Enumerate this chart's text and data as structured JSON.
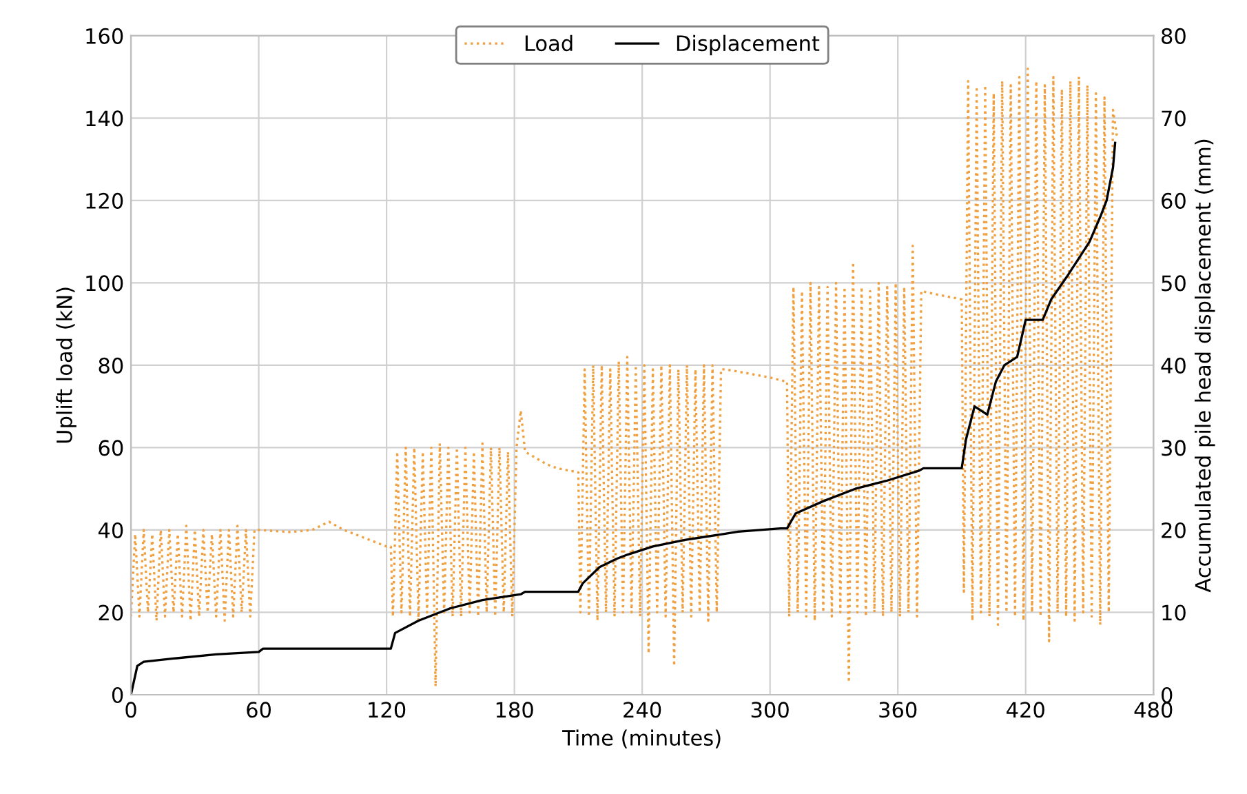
{
  "chart_data": {
    "type": "line",
    "xlabel": "Time (minutes)",
    "ylabel": "Uplift load (kN)",
    "y2label": "Accumulated pile head displacement (mm)",
    "xlim": [
      0,
      480
    ],
    "xticks": [
      0,
      60,
      120,
      180,
      240,
      300,
      360,
      420,
      480
    ],
    "ylim": [
      0,
      160
    ],
    "yticks": [
      0,
      20,
      40,
      60,
      80,
      100,
      120,
      140,
      160
    ],
    "y2lim": [
      0,
      80
    ],
    "y2ticks": [
      0,
      10,
      20,
      30,
      40,
      50,
      60,
      70,
      80
    ],
    "grid": true,
    "legend": "top",
    "marker": "none",
    "series": [
      {
        "name": "Load",
        "color": "#f0a040",
        "line_style": "dotted",
        "axis": "y",
        "x": [
          0,
          2,
          4,
          6,
          8,
          10,
          12,
          14,
          16,
          18,
          20,
          22,
          24,
          26,
          28,
          30,
          32,
          34,
          36,
          38,
          40,
          42,
          44,
          46,
          48,
          50,
          52,
          54,
          56,
          58,
          60,
          75,
          85,
          93,
          100,
          110,
          120,
          122,
          123,
          125,
          127,
          129,
          131,
          133,
          135,
          137,
          139,
          141,
          143,
          145,
          147,
          149,
          151,
          153,
          155,
          157,
          159,
          161,
          163,
          165,
          167,
          169,
          171,
          173,
          175,
          177,
          179,
          181,
          183,
          185,
          195,
          200,
          210,
          211,
          213,
          215,
          217,
          219,
          221,
          223,
          225,
          227,
          229,
          231,
          233,
          235,
          237,
          239,
          241,
          243,
          245,
          247,
          249,
          251,
          253,
          255,
          257,
          259,
          261,
          263,
          265,
          267,
          269,
          271,
          273,
          275,
          277,
          279,
          290,
          300,
          308,
          309,
          311,
          313,
          315,
          317,
          319,
          321,
          323,
          325,
          327,
          329,
          331,
          333,
          335,
          337,
          339,
          341,
          343,
          345,
          347,
          349,
          351,
          353,
          355,
          357,
          359,
          361,
          363,
          365,
          367,
          369,
          371,
          380,
          390,
          391,
          393,
          395,
          397,
          399,
          401,
          403,
          405,
          407,
          409,
          411,
          413,
          415,
          417,
          419,
          421,
          423,
          425,
          427,
          429,
          431,
          433,
          435,
          437,
          439,
          441,
          443,
          445,
          447,
          449,
          451,
          453,
          455,
          457,
          459,
          461,
          463
        ],
        "values": [
          19,
          39,
          19,
          40,
          20,
          39,
          18,
          40,
          19,
          40,
          20,
          39,
          19,
          41,
          18,
          40,
          19,
          40,
          20,
          39,
          19,
          40,
          18,
          40,
          19,
          41,
          20,
          40,
          19,
          40,
          40,
          39.5,
          40,
          42,
          40,
          38,
          36,
          36,
          19,
          59,
          20,
          60,
          19,
          60,
          18,
          59,
          20,
          60,
          2,
          61,
          20,
          60,
          19,
          60,
          19,
          60,
          20,
          59,
          19,
          61,
          20,
          60,
          19,
          60,
          20,
          59,
          19,
          60,
          69,
          59,
          56,
          55,
          54,
          20,
          79,
          19,
          80,
          18,
          80,
          20,
          79,
          19,
          81,
          20,
          82,
          20,
          80,
          19,
          80,
          10,
          79,
          20,
          80,
          19,
          80,
          7,
          79,
          20,
          80,
          19,
          79,
          20,
          80,
          18,
          80,
          20,
          79,
          79,
          78,
          77,
          76,
          19,
          99,
          20,
          98,
          19,
          100,
          18,
          99,
          20,
          99,
          19,
          100,
          20,
          99,
          3,
          105,
          20,
          99,
          19,
          98,
          20,
          100,
          19,
          99,
          20,
          100,
          19,
          99,
          20,
          109,
          19,
          98,
          97,
          96,
          25,
          149,
          18,
          147,
          20,
          148,
          19,
          146,
          17,
          149,
          20,
          148,
          19,
          150,
          18,
          152,
          20,
          149,
          19,
          148,
          13,
          150,
          20,
          147,
          19,
          149,
          18,
          150,
          20,
          148,
          19,
          146,
          17,
          145,
          20,
          142,
          135
        ]
      },
      {
        "name": "Displacement",
        "color": "#000000",
        "line_style": "solid",
        "axis": "y2",
        "x": [
          0,
          3,
          6,
          20,
          40,
          60,
          62,
          122,
          124,
          135,
          150,
          165,
          183,
          185,
          210,
          212,
          220,
          228,
          233,
          245,
          260,
          278,
          285,
          305,
          308,
          312,
          325,
          340,
          355,
          370,
          372,
          390,
          392,
          396,
          402,
          406,
          410,
          416,
          420,
          428,
          432,
          440,
          445,
          450,
          455,
          458,
          461,
          462
        ],
        "values": [
          0,
          3.5,
          4,
          4.4,
          4.9,
          5.2,
          5.6,
          5.6,
          7.5,
          9,
          10.5,
          11.5,
          12.2,
          12.5,
          12.5,
          13.5,
          15.5,
          16.5,
          17,
          18,
          18.8,
          19.5,
          19.8,
          20.2,
          20.2,
          22,
          23.5,
          25,
          26,
          27.2,
          27.5,
          27.5,
          31,
          35,
          34,
          38,
          40,
          41,
          45.5,
          45.5,
          48,
          51,
          53,
          55,
          58,
          60,
          64,
          67
        ]
      }
    ]
  }
}
